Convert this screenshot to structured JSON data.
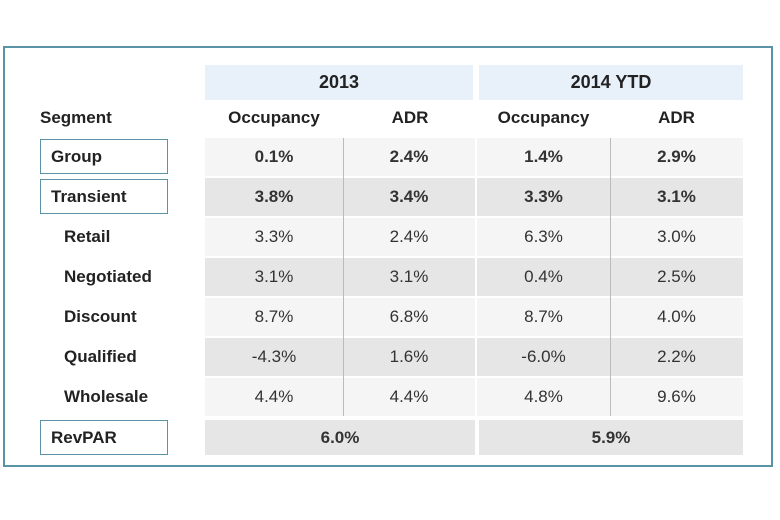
{
  "table": {
    "column_groups": [
      "2013",
      "2014 YTD"
    ],
    "header": [
      "Segment",
      "Occupancy",
      "ADR",
      "Occupancy",
      "ADR"
    ],
    "rows": [
      [
        "Group",
        "0.1%",
        "2.4%",
        "1.4%",
        "2.9%"
      ],
      [
        "Transient",
        "3.8%",
        "3.4%",
        "3.3%",
        "3.1%"
      ],
      [
        "Retail",
        "3.3%",
        "2.4%",
        "6.3%",
        "3.0%"
      ],
      [
        "Negotiated",
        "3.1%",
        "3.1%",
        "0.4%",
        "2.5%"
      ],
      [
        "Discount",
        "8.7%",
        "6.8%",
        "8.7%",
        "4.0%"
      ],
      [
        "Qualified",
        "-4.3%",
        "1.6%",
        "-6.0%",
        "2.2%"
      ],
      [
        "Wholesale",
        "4.4%",
        "4.4%",
        "4.8%",
        "9.6%"
      ]
    ],
    "total": {
      "label": "RevPAR",
      "values": [
        "6.0%",
        "5.9%"
      ]
    }
  }
}
